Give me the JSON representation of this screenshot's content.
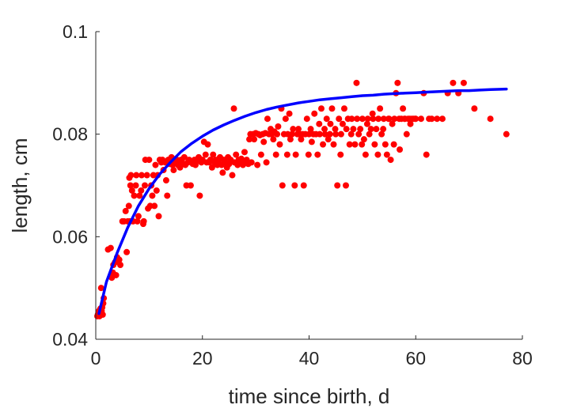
{
  "chart_data": {
    "type": "scatter",
    "title": "",
    "xlabel": "time since birth, d",
    "ylabel": "length, cm",
    "xlim": [
      0,
      80
    ],
    "ylim": [
      0.04,
      0.1
    ],
    "xticks": [
      0,
      20,
      40,
      60,
      80
    ],
    "xtick_labels": [
      "0",
      "20",
      "40",
      "60",
      "80"
    ],
    "yticks": [
      0.04,
      0.06,
      0.08,
      0.1
    ],
    "ytick_labels": [
      "0.04",
      "0.06",
      "0.08",
      "0.1"
    ],
    "grid": false,
    "legend": "none",
    "series": [
      {
        "kind": "scatter",
        "color": "#ff0000",
        "points": [
          [
            0.3,
            0.0445
          ],
          [
            0.4,
            0.0448
          ],
          [
            0.5,
            0.0452
          ],
          [
            0.6,
            0.0455
          ],
          [
            0.7,
            0.0445
          ],
          [
            0.8,
            0.0458
          ],
          [
            0.9,
            0.046
          ],
          [
            1.0,
            0.045
          ],
          [
            1.1,
            0.0455
          ],
          [
            1.2,
            0.0462
          ],
          [
            1.3,
            0.0448
          ],
          [
            1.4,
            0.047
          ],
          [
            1.0,
            0.05
          ],
          [
            1.5,
            0.048
          ],
          [
            2.3,
            0.0575
          ],
          [
            2.8,
            0.0578
          ],
          [
            3.0,
            0.052
          ],
          [
            3.2,
            0.053
          ],
          [
            3.3,
            0.0545
          ],
          [
            3.6,
            0.055
          ],
          [
            3.8,
            0.0525
          ],
          [
            4.0,
            0.056
          ],
          [
            4.4,
            0.0555
          ],
          [
            4.6,
            0.0545
          ],
          [
            5.0,
            0.063
          ],
          [
            5.3,
            0.063
          ],
          [
            5.6,
            0.065
          ],
          [
            5.8,
            0.057
          ],
          [
            6.0,
            0.063
          ],
          [
            6.2,
            0.066
          ],
          [
            6.4,
            0.063
          ],
          [
            6.5,
            0.07
          ],
          [
            6.8,
            0.069
          ],
          [
            6.6,
            0.072
          ],
          [
            6.3,
            0.0715
          ],
          [
            7.0,
            0.063
          ],
          [
            7.2,
            0.068
          ],
          [
            7.5,
            0.07
          ],
          [
            7.6,
            0.072
          ],
          [
            7.8,
            0.063
          ],
          [
            8.0,
            0.064
          ],
          [
            8.2,
            0.068
          ],
          [
            8.5,
            0.069
          ],
          [
            8.6,
            0.072
          ],
          [
            8.9,
            0.0625
          ],
          [
            9.0,
            0.063
          ],
          [
            9.2,
            0.07
          ],
          [
            9.3,
            0.075
          ],
          [
            9.6,
            0.072
          ],
          [
            9.8,
            0.0655
          ],
          [
            10.0,
            0.075
          ],
          [
            10.2,
            0.066
          ],
          [
            10.4,
            0.07
          ],
          [
            10.6,
            0.068
          ],
          [
            10.8,
            0.072
          ],
          [
            11.0,
            0.066
          ],
          [
            11.2,
            0.074
          ],
          [
            11.4,
            0.069
          ],
          [
            11.6,
            0.072
          ],
          [
            11.8,
            0.064
          ],
          [
            12.0,
            0.075
          ],
          [
            12.3,
            0.0745
          ],
          [
            12.5,
            0.075
          ],
          [
            12.7,
            0.073
          ],
          [
            13.0,
            0.0745
          ],
          [
            13.2,
            0.071
          ],
          [
            13.4,
            0.068
          ],
          [
            13.6,
            0.075
          ],
          [
            13.8,
            0.0742
          ],
          [
            14.0,
            0.0748
          ],
          [
            14.2,
            0.0755
          ],
          [
            14.4,
            0.074
          ],
          [
            14.6,
            0.073
          ],
          [
            15.0,
            0.0745
          ],
          [
            15.2,
            0.075
          ],
          [
            15.4,
            0.074
          ],
          [
            15.6,
            0.0748
          ],
          [
            15.8,
            0.0735
          ],
          [
            16.0,
            0.075
          ],
          [
            16.2,
            0.0745
          ],
          [
            16.4,
            0.0742
          ],
          [
            16.6,
            0.0755
          ],
          [
            16.8,
            0.074
          ],
          [
            17.0,
            0.07
          ],
          [
            17.3,
            0.0745
          ],
          [
            17.5,
            0.075
          ],
          [
            17.8,
            0.07
          ],
          [
            18.0,
            0.0745
          ],
          [
            18.2,
            0.0742
          ],
          [
            18.5,
            0.075
          ],
          [
            18.7,
            0.074
          ],
          [
            19.0,
            0.0748
          ],
          [
            19.3,
            0.0755
          ],
          [
            19.5,
            0.068
          ],
          [
            19.8,
            0.0745
          ],
          [
            20.0,
            0.075
          ],
          [
            20.3,
            0.0785
          ],
          [
            20.6,
            0.076
          ],
          [
            20.8,
            0.0745
          ],
          [
            21.0,
            0.078
          ],
          [
            21.3,
            0.0745
          ],
          [
            21.5,
            0.075
          ],
          [
            21.8,
            0.0735
          ],
          [
            22.0,
            0.076
          ],
          [
            22.3,
            0.0745
          ],
          [
            22.5,
            0.075
          ],
          [
            22.8,
            0.074
          ],
          [
            23.0,
            0.0748
          ],
          [
            23.3,
            0.0755
          ],
          [
            23.6,
            0.074
          ],
          [
            23.8,
            0.0725
          ],
          [
            24.0,
            0.075
          ],
          [
            24.3,
            0.0745
          ],
          [
            24.6,
            0.0735
          ],
          [
            24.8,
            0.0755
          ],
          [
            25.0,
            0.0742
          ],
          [
            25.3,
            0.075
          ],
          [
            25.6,
            0.072
          ],
          [
            25.9,
            0.085
          ],
          [
            26.0,
            0.0745
          ],
          [
            26.3,
            0.076
          ],
          [
            26.6,
            0.074
          ],
          [
            26.8,
            0.075
          ],
          [
            27.0,
            0.0745
          ],
          [
            27.3,
            0.0752
          ],
          [
            27.6,
            0.074
          ],
          [
            27.9,
            0.0765
          ],
          [
            28.0,
            0.0748
          ],
          [
            28.3,
            0.075
          ],
          [
            28.6,
            0.0742
          ],
          [
            28.8,
            0.079
          ],
          [
            29.0,
            0.08
          ],
          [
            29.2,
            0.0745
          ],
          [
            29.5,
            0.08
          ],
          [
            29.7,
            0.079
          ],
          [
            30.0,
            0.0802
          ],
          [
            30.3,
            0.074
          ],
          [
            30.5,
            0.08
          ],
          [
            30.8,
            0.0798
          ],
          [
            31.0,
            0.076
          ],
          [
            31.3,
            0.08
          ],
          [
            31.5,
            0.0785
          ],
          [
            31.8,
            0.0802
          ],
          [
            32.0,
            0.0745
          ],
          [
            32.2,
            0.083
          ],
          [
            32.5,
            0.08
          ],
          [
            32.8,
            0.081
          ],
          [
            33.0,
            0.08
          ],
          [
            33.3,
            0.079
          ],
          [
            33.5,
            0.0805
          ],
          [
            33.8,
            0.076
          ],
          [
            34.0,
            0.08
          ],
          [
            34.2,
            0.0815
          ],
          [
            34.5,
            0.078
          ],
          [
            34.8,
            0.085
          ],
          [
            35.0,
            0.07
          ],
          [
            35.3,
            0.08
          ],
          [
            35.6,
            0.083
          ],
          [
            35.9,
            0.076
          ],
          [
            36.0,
            0.08
          ],
          [
            36.3,
            0.084
          ],
          [
            36.5,
            0.079
          ],
          [
            36.8,
            0.08
          ],
          [
            37.0,
            0.081
          ],
          [
            37.3,
            0.07
          ],
          [
            37.5,
            0.076
          ],
          [
            37.8,
            0.08
          ],
          [
            38.0,
            0.081
          ],
          [
            38.3,
            0.08
          ],
          [
            38.5,
            0.079
          ],
          [
            38.8,
            0.08
          ],
          [
            39.0,
            0.07
          ],
          [
            39.3,
            0.08
          ],
          [
            39.6,
            0.083
          ],
          [
            39.9,
            0.076
          ],
          [
            40.0,
            0.08
          ],
          [
            40.3,
            0.081
          ],
          [
            40.5,
            0.0785
          ],
          [
            40.8,
            0.08
          ],
          [
            41.0,
            0.084
          ],
          [
            41.3,
            0.08
          ],
          [
            41.6,
            0.076
          ],
          [
            41.9,
            0.082
          ],
          [
            42.0,
            0.08
          ],
          [
            42.3,
            0.085
          ],
          [
            42.6,
            0.078
          ],
          [
            42.9,
            0.081
          ],
          [
            43.0,
            0.08
          ],
          [
            43.3,
            0.083
          ],
          [
            43.6,
            0.079
          ],
          [
            43.9,
            0.08
          ],
          [
            44.0,
            0.082
          ],
          [
            44.3,
            0.085
          ],
          [
            44.6,
            0.078
          ],
          [
            44.9,
            0.081
          ],
          [
            45.0,
            0.08
          ],
          [
            45.3,
            0.07
          ],
          [
            45.6,
            0.083
          ],
          [
            45.9,
            0.076
          ],
          [
            46.0,
            0.08
          ],
          [
            46.3,
            0.082
          ],
          [
            46.6,
            0.085
          ],
          [
            46.9,
            0.07
          ],
          [
            47.0,
            0.081
          ],
          [
            47.3,
            0.083
          ],
          [
            47.6,
            0.078
          ],
          [
            47.9,
            0.08
          ],
          [
            48.0,
            0.083
          ],
          [
            48.3,
            0.081
          ],
          [
            48.6,
            0.078
          ],
          [
            48.9,
            0.09
          ],
          [
            49.0,
            0.083
          ],
          [
            49.3,
            0.08
          ],
          [
            49.6,
            0.081
          ],
          [
            49.9,
            0.078
          ],
          [
            50.0,
            0.083
          ],
          [
            50.3,
            0.079
          ],
          [
            50.6,
            0.076
          ],
          [
            50.9,
            0.082
          ],
          [
            51.0,
            0.083
          ],
          [
            51.3,
            0.08
          ],
          [
            51.6,
            0.081
          ],
          [
            51.9,
            0.084
          ],
          [
            52.0,
            0.083
          ],
          [
            52.3,
            0.078
          ],
          [
            52.6,
            0.081
          ],
          [
            52.9,
            0.076
          ],
          [
            53.0,
            0.083
          ],
          [
            53.3,
            0.085
          ],
          [
            53.6,
            0.08
          ],
          [
            53.9,
            0.081
          ],
          [
            54.0,
            0.083
          ],
          [
            54.3,
            0.078
          ],
          [
            54.6,
            0.076
          ],
          [
            54.9,
            0.083
          ],
          [
            55.0,
            0.083
          ],
          [
            55.3,
            0.075
          ],
          [
            55.6,
            0.082
          ],
          [
            55.9,
            0.078
          ],
          [
            56.0,
            0.083
          ],
          [
            56.3,
            0.088
          ],
          [
            56.6,
            0.09
          ],
          [
            56.9,
            0.083
          ],
          [
            57.0,
            0.077
          ],
          [
            57.3,
            0.083
          ],
          [
            57.6,
            0.085
          ],
          [
            57.9,
            0.083
          ],
          [
            58.0,
            0.083
          ],
          [
            58.3,
            0.08
          ],
          [
            58.6,
            0.083
          ],
          [
            58.9,
            0.083
          ],
          [
            59.0,
            0.082
          ],
          [
            59.3,
            0.083
          ],
          [
            59.6,
            0.083
          ],
          [
            59.9,
            0.083
          ],
          [
            60.0,
            0.083
          ],
          [
            61.0,
            0.083
          ],
          [
            61.5,
            0.088
          ],
          [
            62.0,
            0.076
          ],
          [
            62.5,
            0.083
          ],
          [
            63.0,
            0.083
          ],
          [
            64.0,
            0.083
          ],
          [
            65.0,
            0.083
          ],
          [
            66.0,
            0.088
          ],
          [
            67.0,
            0.09
          ],
          [
            68.0,
            0.088
          ],
          [
            69.0,
            0.09
          ],
          [
            71.0,
            0.085
          ],
          [
            74.0,
            0.083
          ],
          [
            77.0,
            0.08
          ]
        ]
      },
      {
        "kind": "line",
        "color": "#0000ff",
        "x": [
          0.6,
          2,
          4,
          6,
          8,
          10,
          12,
          14,
          16,
          18,
          20,
          22,
          24,
          26,
          28,
          30,
          32,
          34,
          36,
          38,
          40,
          42,
          44,
          46,
          48,
          50,
          52,
          54,
          56,
          58,
          60,
          62,
          64,
          66,
          68,
          70,
          72,
          74,
          77
        ],
        "y": [
          0.045,
          0.0512,
          0.0568,
          0.0618,
          0.066,
          0.0694,
          0.0722,
          0.0745,
          0.0766,
          0.0782,
          0.0796,
          0.0808,
          0.0818,
          0.0827,
          0.0835,
          0.0842,
          0.0848,
          0.0853,
          0.0857,
          0.0861,
          0.0864,
          0.0867,
          0.0869,
          0.0871,
          0.0873,
          0.0875,
          0.0876,
          0.0878,
          0.0879,
          0.088,
          0.0881,
          0.0882,
          0.0883,
          0.0884,
          0.0885,
          0.0885,
          0.0886,
          0.0887,
          0.0888
        ]
      }
    ]
  }
}
